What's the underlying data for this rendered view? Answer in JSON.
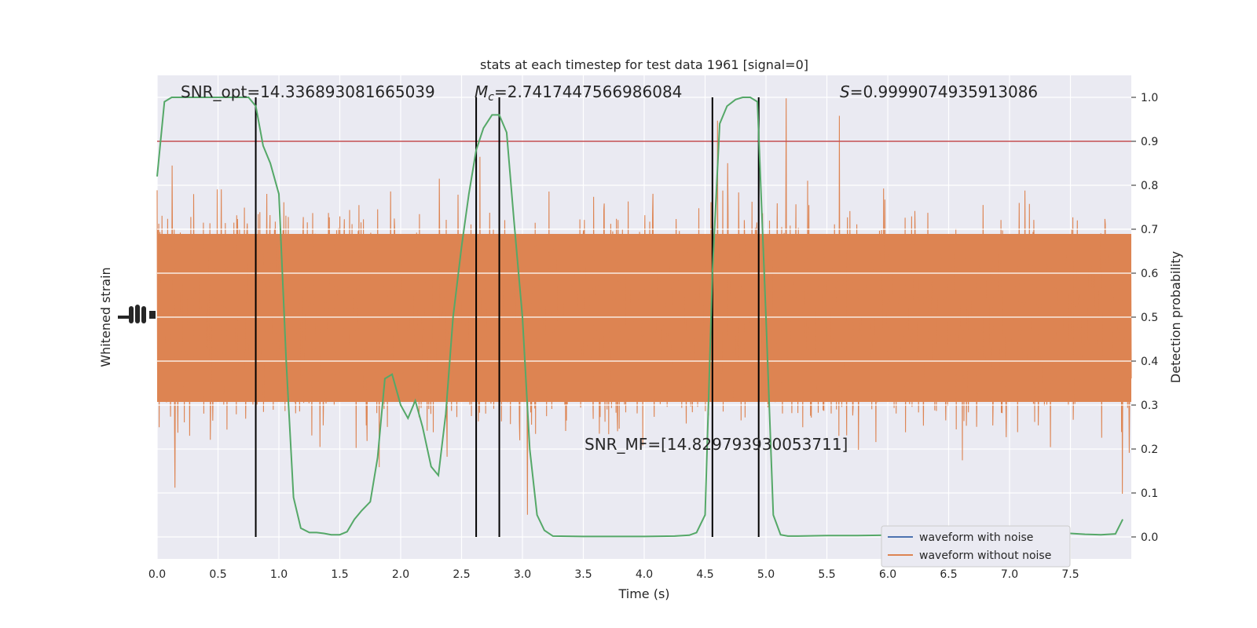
{
  "chart_data": {
    "type": "line",
    "title": "stats at each timestep for test data 1961 [signal=0]",
    "xlabel": "Time (s)",
    "ylabel_left": "Whitened strain",
    "ylabel_right": "Detection probability",
    "xlim": [
      0.0,
      8.0
    ],
    "ylim_right": [
      -0.05,
      1.05
    ],
    "grid": true,
    "x_ticks": [
      "0.0",
      "0.5",
      "1.0",
      "1.5",
      "2.0",
      "2.5",
      "3.0",
      "3.5",
      "4.0",
      "4.5",
      "5.0",
      "5.5",
      "6.0",
      "6.5",
      "7.0",
      "7.5"
    ],
    "x_tick_values": [
      0,
      0.5,
      1,
      1.5,
      2,
      2.5,
      3,
      3.5,
      4,
      4.5,
      5,
      5.5,
      6,
      6.5,
      7,
      7.5
    ],
    "y_right_ticks": [
      "0.0",
      "0.1",
      "0.2",
      "0.3",
      "0.4",
      "0.5",
      "0.6",
      "0.7",
      "0.8",
      "0.9",
      "1.0"
    ],
    "y_right_tick_values": [
      0,
      0.1,
      0.2,
      0.3,
      0.4,
      0.5,
      0.6,
      0.7,
      0.8,
      0.9,
      1.0
    ],
    "threshold": 0.9,
    "vertical_lines": [
      0.81,
      2.62,
      2.81,
      4.56,
      4.94
    ],
    "detection_probability": {
      "x": [
        0.0,
        0.06,
        0.12,
        0.18,
        0.25,
        0.31,
        0.37,
        0.43,
        0.5,
        0.56,
        0.62,
        0.68,
        0.75,
        0.81,
        0.87,
        0.93,
        1.0,
        1.06,
        1.12,
        1.18,
        1.25,
        1.31,
        1.37,
        1.43,
        1.5,
        1.56,
        1.62,
        1.68,
        1.75,
        1.81,
        1.87,
        1.93,
        2.0,
        2.06,
        2.12,
        2.18,
        2.25,
        2.31,
        2.37,
        2.43,
        2.5,
        2.56,
        2.62,
        2.68,
        2.75,
        2.81,
        2.87,
        2.93,
        3.0,
        3.06,
        3.12,
        3.18,
        3.25,
        3.5,
        3.75,
        4.0,
        4.25,
        4.37,
        4.43,
        4.5,
        4.56,
        4.62,
        4.68,
        4.75,
        4.81,
        4.87,
        4.93,
        5.0,
        5.06,
        5.12,
        5.18,
        5.25,
        5.5,
        5.75,
        6.0,
        6.25,
        6.5,
        6.75,
        7.0,
        7.25,
        7.5,
        7.62,
        7.75,
        7.87,
        7.93
      ],
      "y": [
        0.82,
        0.99,
        1.0,
        1.0,
        1.0,
        1.0,
        1.0,
        1.0,
        1.0,
        1.0,
        1.0,
        1.0,
        1.0,
        0.98,
        0.89,
        0.85,
        0.78,
        0.4,
        0.09,
        0.02,
        0.01,
        0.01,
        0.008,
        0.005,
        0.005,
        0.012,
        0.04,
        0.06,
        0.08,
        0.18,
        0.36,
        0.37,
        0.3,
        0.27,
        0.31,
        0.25,
        0.16,
        0.14,
        0.28,
        0.5,
        0.66,
        0.78,
        0.88,
        0.93,
        0.96,
        0.96,
        0.92,
        0.72,
        0.5,
        0.2,
        0.05,
        0.015,
        0.002,
        0.001,
        0.001,
        0.001,
        0.002,
        0.004,
        0.01,
        0.05,
        0.6,
        0.94,
        0.98,
        0.995,
        1.0,
        1.0,
        0.99,
        0.5,
        0.05,
        0.005,
        0.002,
        0.002,
        0.003,
        0.003,
        0.004,
        0.005,
        0.006,
        0.007,
        0.008,
        0.008,
        0.008,
        0.006,
        0.005,
        0.007,
        0.04
      ]
    },
    "waveform_without_noise": {
      "description_values": "dense whitened-strain trace",
      "color": "#dd8452"
    },
    "series": [
      {
        "name": "waveform with noise",
        "color": "#4c72b0"
      },
      {
        "name": "waveform without noise",
        "color": "#dd8452"
      }
    ],
    "annotations": {
      "snr_opt": "SNR_opt=14.336893081665039",
      "mc_symbol": "M",
      "mc_sub": "c",
      "mc_value": "=2.7417447566986084",
      "s_symbol": "S",
      "s_value": "=0.9999074935913086",
      "snr_mf": "SNR_MF=[14.829793930053711]"
    },
    "legend_position": "lower-right"
  },
  "colors": {
    "axes_bg": "#eaeaf2",
    "grid": "#ffffff",
    "strain": "#dd8452",
    "probability": "#55a868",
    "threshold": "#c44e52",
    "vlines": "#000000"
  }
}
